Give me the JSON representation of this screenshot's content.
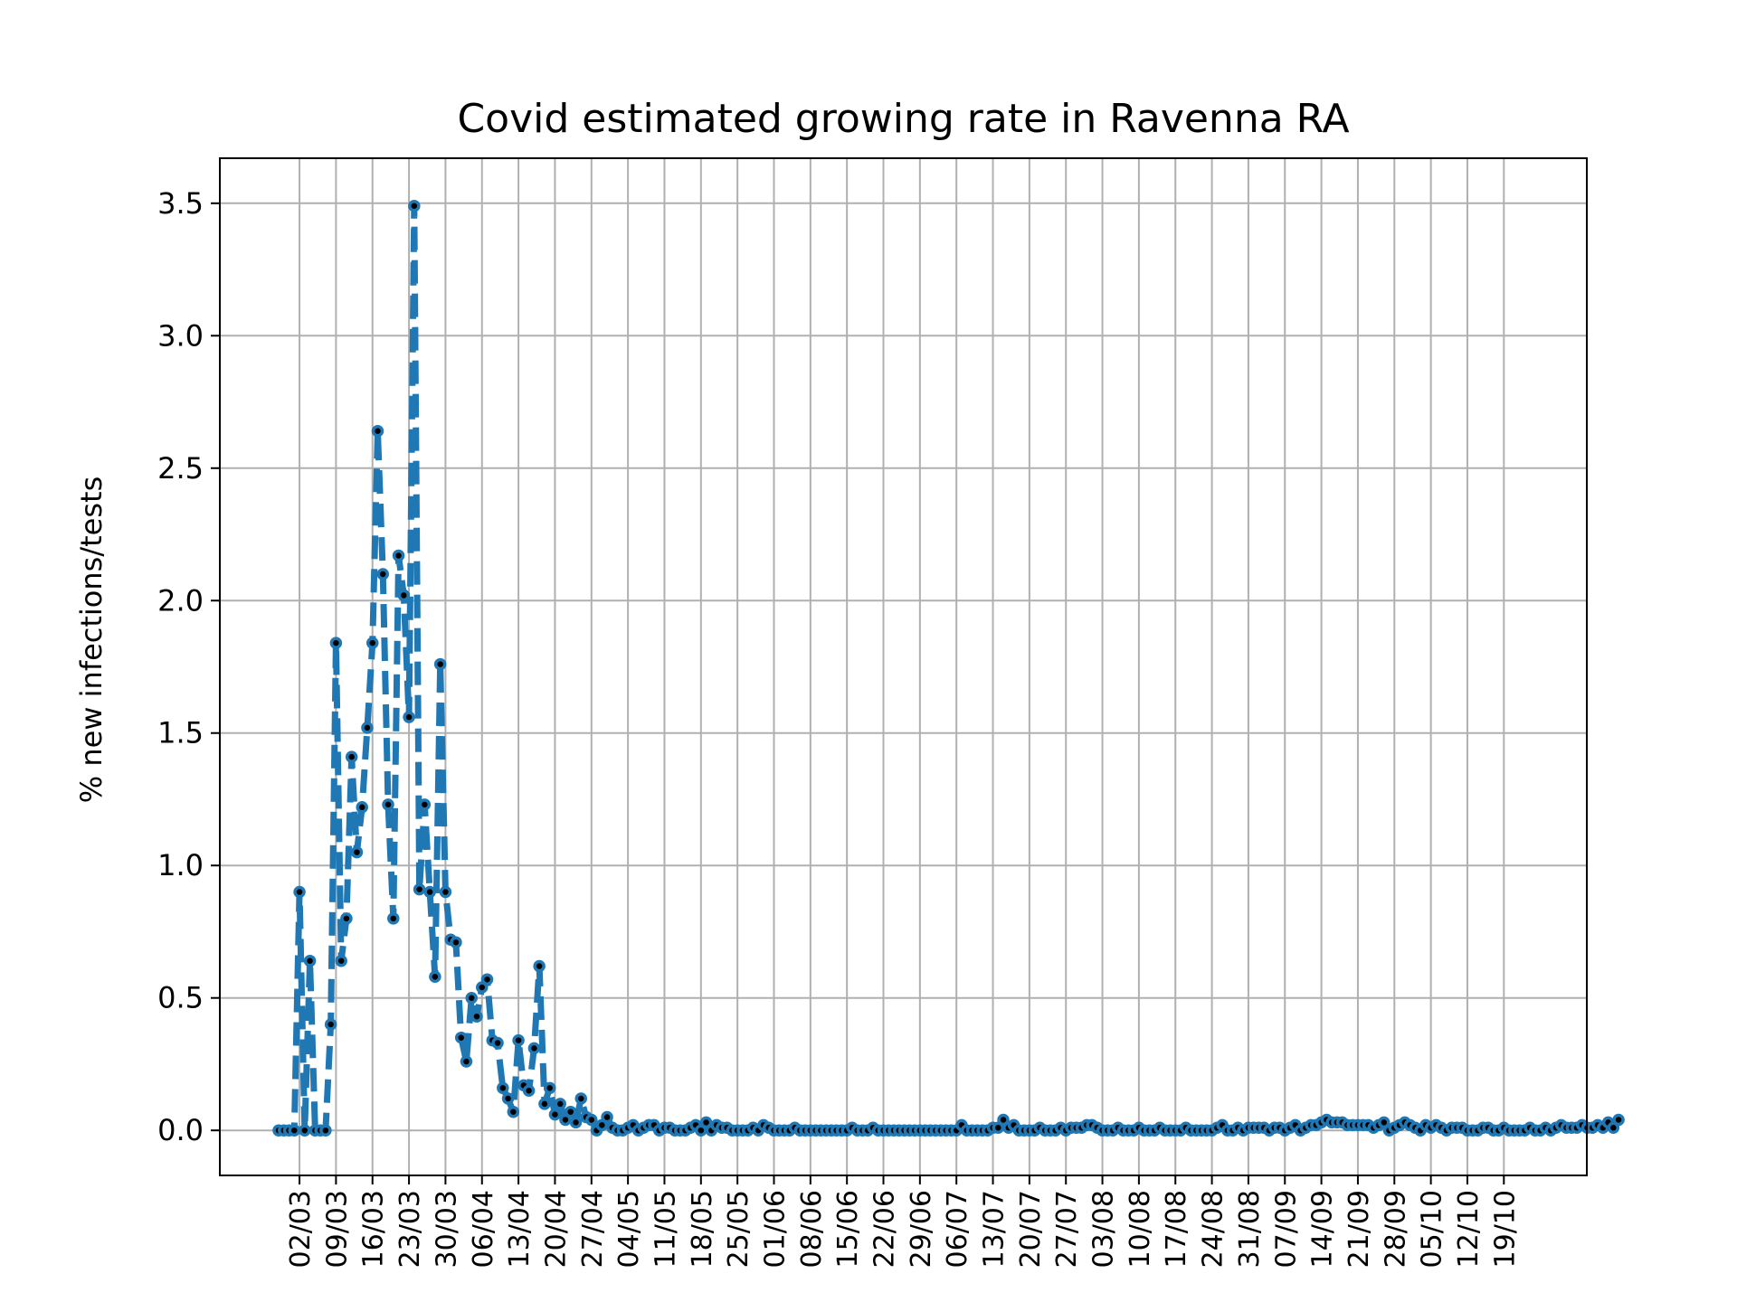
{
  "chart_data": {
    "type": "line",
    "title": "Covid estimated growing rate in Ravenna RA",
    "xlabel": "",
    "ylabel": "% new infections/tests",
    "ylim": [
      -0.17,
      3.67
    ],
    "yticks": [
      "0.0",
      "0.5",
      "1.0",
      "1.5",
      "2.0",
      "2.5",
      "3.0",
      "3.5"
    ],
    "x_ticks": [
      "02/03",
      "09/03",
      "16/03",
      "23/03",
      "30/03",
      "06/04",
      "13/04",
      "20/04",
      "27/04",
      "04/05",
      "11/05",
      "18/05",
      "25/05",
      "01/06",
      "08/06",
      "15/06",
      "22/06",
      "29/06",
      "06/07",
      "13/07",
      "20/07",
      "27/07",
      "03/08",
      "10/08",
      "17/08",
      "24/08",
      "31/08",
      "07/09",
      "14/09",
      "21/09",
      "28/09",
      "05/10",
      "12/10",
      "19/10"
    ],
    "grid": true,
    "line_style": "dashed",
    "colors": {
      "line": "#1f77b4",
      "marker_edge": "#1f77b4",
      "marker_face": "#000000",
      "grid": "#b0b0b0"
    },
    "series": [
      {
        "values": [
          0.0,
          0.0,
          0.0,
          0.0,
          0.9,
          0.0,
          0.64,
          0.0,
          0.0,
          0.0,
          0.4,
          1.84,
          0.64,
          0.8,
          1.41,
          1.05,
          1.22,
          1.52,
          1.84,
          2.64,
          2.1,
          1.23,
          0.8,
          2.17,
          2.02,
          1.56,
          3.49,
          0.91,
          1.23,
          0.9,
          0.58,
          1.76,
          0.9,
          0.72,
          0.71,
          0.35,
          0.26,
          0.5,
          0.43,
          0.54,
          0.57,
          0.34,
          0.33,
          0.16,
          0.12,
          0.07,
          0.34,
          0.17,
          0.15,
          0.31,
          0.62,
          0.1,
          0.16,
          0.06,
          0.1,
          0.04,
          0.07,
          0.03,
          0.12,
          0.05,
          0.04,
          0.0,
          0.02,
          0.05,
          0.01,
          0.0,
          0.0,
          0.01,
          0.02,
          0.0,
          0.01,
          0.02,
          0.02,
          0.0,
          0.01,
          0.01,
          0.0,
          0.0,
          0.0,
          0.01,
          0.02,
          0.0,
          0.03,
          0.0,
          0.02,
          0.01,
          0.01,
          0.0,
          0.0,
          0.0,
          0.0,
          0.01,
          0.0,
          0.02,
          0.01,
          0.0,
          0.0,
          0.0,
          0.0,
          0.01,
          0.0,
          0.0,
          0.0,
          0.0,
          0.0,
          0.0,
          0.0,
          0.0,
          0.0,
          0.0,
          0.01,
          0.0,
          0.0,
          0.0,
          0.01,
          0.0,
          0.0,
          0.0,
          0.0,
          0.0,
          0.0,
          0.0,
          0.0,
          0.0,
          0.0,
          0.0,
          0.0,
          0.0,
          0.0,
          0.0,
          0.0,
          0.02,
          0.0,
          0.0,
          0.0,
          0.0,
          0.0,
          0.01,
          0.01,
          0.04,
          0.01,
          0.02,
          0.0,
          0.0,
          0.0,
          0.0,
          0.01,
          0.0,
          0.0,
          0.0,
          0.01,
          0.0,
          0.01,
          0.01,
          0.01,
          0.02,
          0.02,
          0.01,
          0.0,
          0.0,
          0.0,
          0.01,
          0.0,
          0.0,
          0.0,
          0.01,
          0.0,
          0.0,
          0.0,
          0.01,
          0.0,
          0.0,
          0.0,
          0.0,
          0.01,
          0.0,
          0.0,
          0.0,
          0.0,
          0.0,
          0.01,
          0.02,
          0.0,
          0.0,
          0.01,
          0.0,
          0.01,
          0.01,
          0.01,
          0.01,
          0.0,
          0.01,
          0.01,
          0.0,
          0.01,
          0.02,
          0.0,
          0.01,
          0.02,
          0.02,
          0.03,
          0.04,
          0.03,
          0.03,
          0.03,
          0.02,
          0.02,
          0.02,
          0.02,
          0.02,
          0.01,
          0.02,
          0.03,
          0.0,
          0.01,
          0.02,
          0.03,
          0.02,
          0.01,
          0.0,
          0.02,
          0.01,
          0.02,
          0.01,
          0.0,
          0.01,
          0.01,
          0.01,
          0.0,
          0.0,
          0.0,
          0.01,
          0.01,
          0.0,
          0.0,
          0.01,
          0.0,
          0.0,
          0.0,
          0.0,
          0.01,
          0.0,
          0.0,
          0.01,
          0.0,
          0.01,
          0.02,
          0.01,
          0.01,
          0.01,
          0.02,
          0.01,
          0.01,
          0.02,
          0.01,
          0.03,
          0.01,
          0.04
        ]
      }
    ]
  }
}
